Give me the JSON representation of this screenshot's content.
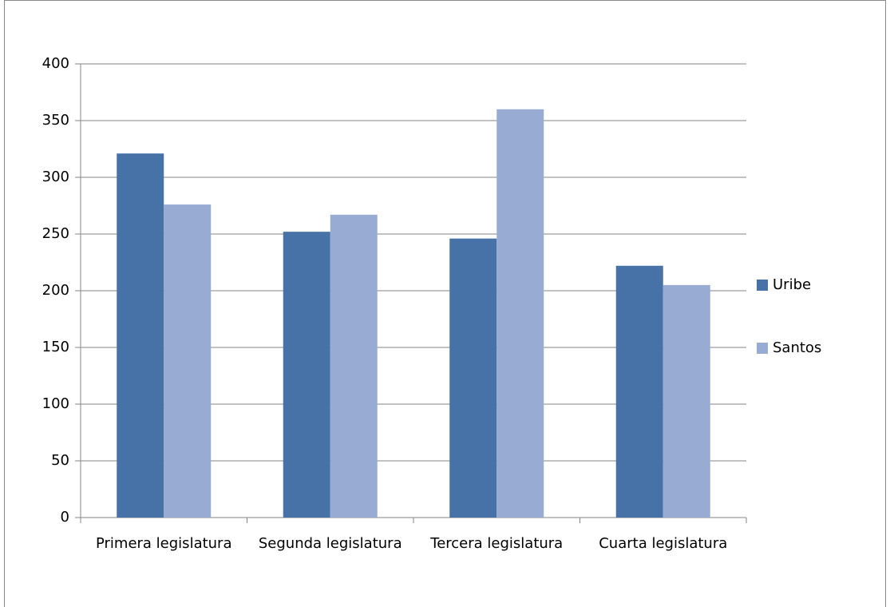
{
  "chart_data": {
    "type": "bar",
    "categories": [
      "Primera legislatura",
      "Segunda legislatura",
      "Tercera legislatura",
      "Cuarta legislatura"
    ],
    "series": [
      {
        "name": "Uribe",
        "color": "#4672a8",
        "values": [
          321,
          252,
          246,
          222
        ]
      },
      {
        "name": "Santos",
        "color": "#98abd2",
        "values": [
          276,
          267,
          360,
          205
        ]
      }
    ],
    "ylim": [
      0,
      400
    ],
    "yticks": [
      0,
      50,
      100,
      150,
      200,
      250,
      300,
      350,
      400
    ],
    "grid": true,
    "legend": "right"
  }
}
